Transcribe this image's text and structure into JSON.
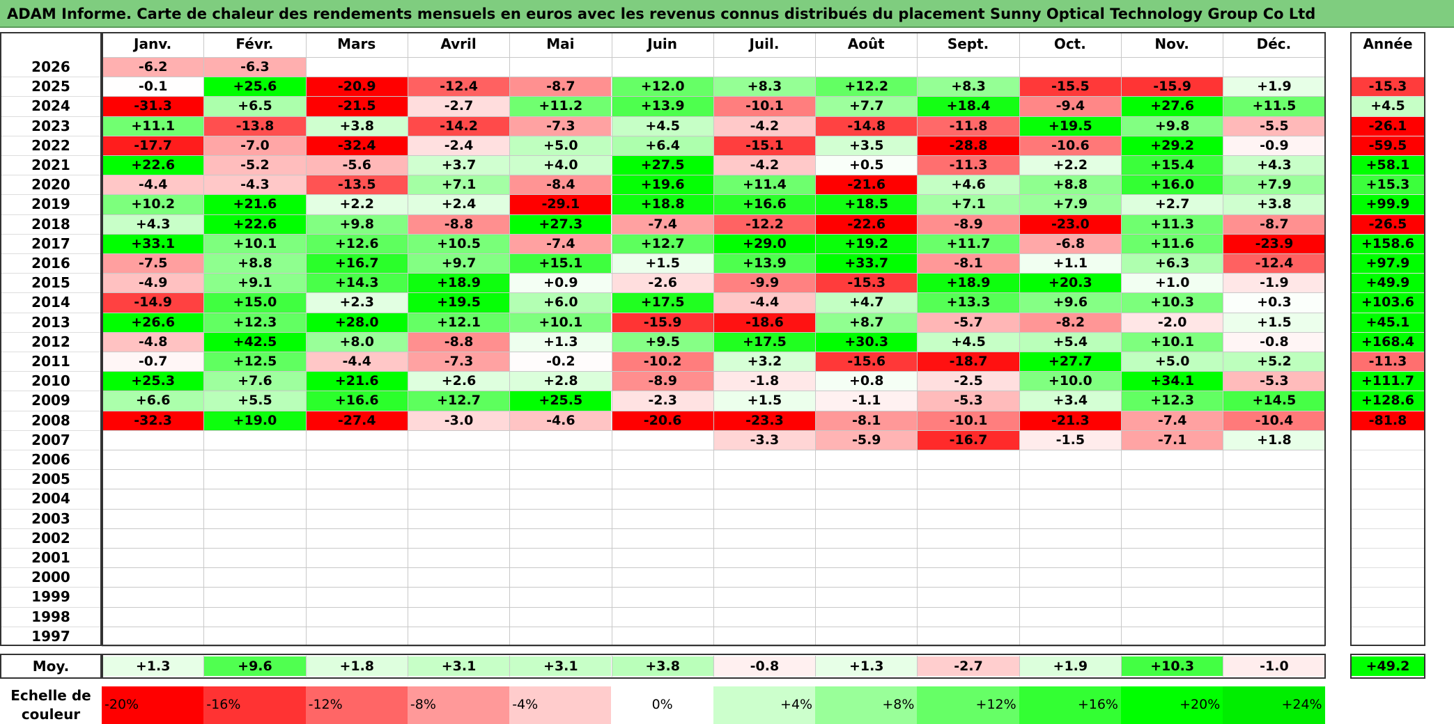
{
  "title": "ADAM Informe. Carte de chaleur des rendements mensuels en euros avec les revenus connus distribués du placement Sunny Optical Technology Group Co Ltd",
  "chart_data": {
    "type": "heatmap",
    "title": "ADAM Informe. Carte de chaleur des rendements mensuels en euros avec les revenus connus distribués du placement Sunny Optical Technology Group Co Ltd",
    "columns": [
      "Janv.",
      "Févr.",
      "Mars",
      "Avril",
      "Mai",
      "Juin",
      "Juil.",
      "Août",
      "Sept.",
      "Oct.",
      "Nov.",
      "Déc."
    ],
    "year_header": "Année",
    "avg_label": "Moy.",
    "rows": [
      {
        "year": "2026",
        "months": [
          -6.2,
          -6.3,
          null,
          null,
          null,
          null,
          null,
          null,
          null,
          null,
          null,
          null
        ],
        "annual": null
      },
      {
        "year": "2025",
        "months": [
          -0.1,
          25.6,
          -20.9,
          -12.4,
          -8.7,
          12.0,
          8.3,
          12.2,
          8.3,
          -15.5,
          -15.9,
          1.9
        ],
        "annual": -15.3
      },
      {
        "year": "2024",
        "months": [
          -31.3,
          6.5,
          -21.5,
          -2.7,
          11.2,
          13.9,
          -10.1,
          7.7,
          18.4,
          -9.4,
          27.6,
          11.5
        ],
        "annual": 4.5
      },
      {
        "year": "2023",
        "months": [
          11.1,
          -13.8,
          3.8,
          -14.2,
          -7.3,
          4.5,
          -4.2,
          -14.8,
          -11.8,
          19.5,
          9.8,
          -5.5
        ],
        "annual": -26.1
      },
      {
        "year": "2022",
        "months": [
          -17.7,
          -7.0,
          -32.4,
          -2.4,
          5.0,
          6.4,
          -15.1,
          3.5,
          -28.8,
          -10.6,
          29.2,
          -0.9
        ],
        "annual": -59.5
      },
      {
        "year": "2021",
        "months": [
          22.6,
          -5.2,
          -5.6,
          3.7,
          4.0,
          27.5,
          -4.2,
          0.5,
          -11.3,
          2.2,
          15.4,
          4.3
        ],
        "annual": 58.1
      },
      {
        "year": "2020",
        "months": [
          -4.4,
          -4.3,
          -13.5,
          7.1,
          -8.4,
          19.6,
          11.4,
          -21.6,
          4.6,
          8.8,
          16.0,
          7.9
        ],
        "annual": 15.3
      },
      {
        "year": "2019",
        "months": [
          10.2,
          21.6,
          2.2,
          2.4,
          -29.1,
          18.8,
          16.6,
          18.5,
          7.1,
          7.9,
          2.7,
          3.8
        ],
        "annual": 99.9
      },
      {
        "year": "2018",
        "months": [
          4.3,
          22.6,
          9.8,
          -8.8,
          27.3,
          -7.4,
          -12.2,
          -22.6,
          -8.9,
          -23.0,
          11.3,
          -8.7
        ],
        "annual": -26.5
      },
      {
        "year": "2017",
        "months": [
          33.1,
          10.1,
          12.6,
          10.5,
          -7.4,
          12.7,
          29.0,
          19.2,
          11.7,
          -6.8,
          11.6,
          -23.9
        ],
        "annual": 158.6
      },
      {
        "year": "2016",
        "months": [
          -7.5,
          8.8,
          16.7,
          9.7,
          15.1,
          1.5,
          13.9,
          33.7,
          -8.1,
          1.1,
          6.3,
          -12.4
        ],
        "annual": 97.9
      },
      {
        "year": "2015",
        "months": [
          -4.9,
          9.1,
          14.3,
          18.9,
          0.9,
          -2.6,
          -9.9,
          -15.3,
          18.9,
          20.3,
          1.0,
          -1.9
        ],
        "annual": 49.9
      },
      {
        "year": "2014",
        "months": [
          -14.9,
          15.0,
          2.3,
          19.5,
          6.0,
          17.5,
          -4.4,
          4.7,
          13.3,
          9.6,
          10.3,
          0.3
        ],
        "annual": 103.6
      },
      {
        "year": "2013",
        "months": [
          26.6,
          12.3,
          28.0,
          12.1,
          10.1,
          -15.9,
          -18.6,
          8.7,
          -5.7,
          -8.2,
          -2.0,
          1.5
        ],
        "annual": 45.1
      },
      {
        "year": "2012",
        "months": [
          -4.8,
          42.5,
          8.0,
          -8.8,
          1.3,
          9.5,
          17.5,
          30.3,
          4.5,
          5.4,
          10.1,
          -0.8
        ],
        "annual": 168.4
      },
      {
        "year": "2011",
        "months": [
          -0.7,
          12.5,
          -4.4,
          -7.3,
          -0.2,
          -10.2,
          3.2,
          -15.6,
          -18.7,
          27.7,
          5.0,
          5.2
        ],
        "annual": -11.3
      },
      {
        "year": "2010",
        "months": [
          25.3,
          7.6,
          21.6,
          2.6,
          2.8,
          -8.9,
          -1.8,
          0.8,
          -2.5,
          10.0,
          34.1,
          -5.3
        ],
        "annual": 111.7
      },
      {
        "year": "2009",
        "months": [
          6.6,
          5.5,
          16.6,
          12.7,
          25.5,
          -2.3,
          1.5,
          -1.1,
          -5.3,
          3.4,
          12.3,
          14.5
        ],
        "annual": 128.6
      },
      {
        "year": "2008",
        "months": [
          -32.3,
          19.0,
          -27.4,
          -3.0,
          -4.6,
          -20.6,
          -23.3,
          -8.1,
          -10.1,
          -21.3,
          -7.4,
          -10.4
        ],
        "annual": -81.8
      },
      {
        "year": "2007",
        "months": [
          null,
          null,
          null,
          null,
          null,
          null,
          -3.3,
          -5.9,
          -16.7,
          -1.5,
          -7.1,
          1.8
        ],
        "annual": null
      },
      {
        "year": "2006",
        "months": [
          null,
          null,
          null,
          null,
          null,
          null,
          null,
          null,
          null,
          null,
          null,
          null
        ],
        "annual": null
      },
      {
        "year": "2005",
        "months": [
          null,
          null,
          null,
          null,
          null,
          null,
          null,
          null,
          null,
          null,
          null,
          null
        ],
        "annual": null
      },
      {
        "year": "2004",
        "months": [
          null,
          null,
          null,
          null,
          null,
          null,
          null,
          null,
          null,
          null,
          null,
          null
        ],
        "annual": null
      },
      {
        "year": "2003",
        "months": [
          null,
          null,
          null,
          null,
          null,
          null,
          null,
          null,
          null,
          null,
          null,
          null
        ],
        "annual": null
      },
      {
        "year": "2002",
        "months": [
          null,
          null,
          null,
          null,
          null,
          null,
          null,
          null,
          null,
          null,
          null,
          null
        ],
        "annual": null
      },
      {
        "year": "2001",
        "months": [
          null,
          null,
          null,
          null,
          null,
          null,
          null,
          null,
          null,
          null,
          null,
          null
        ],
        "annual": null
      },
      {
        "year": "2000",
        "months": [
          null,
          null,
          null,
          null,
          null,
          null,
          null,
          null,
          null,
          null,
          null,
          null
        ],
        "annual": null
      },
      {
        "year": "1999",
        "months": [
          null,
          null,
          null,
          null,
          null,
          null,
          null,
          null,
          null,
          null,
          null,
          null
        ],
        "annual": null
      },
      {
        "year": "1998",
        "months": [
          null,
          null,
          null,
          null,
          null,
          null,
          null,
          null,
          null,
          null,
          null,
          null
        ],
        "annual": null
      },
      {
        "year": "1997",
        "months": [
          null,
          null,
          null,
          null,
          null,
          null,
          null,
          null,
          null,
          null,
          null,
          null
        ],
        "annual": null
      }
    ],
    "averages": [
      1.3,
      9.6,
      1.8,
      3.1,
      3.1,
      3.8,
      -0.8,
      1.3,
      -2.7,
      1.9,
      10.3,
      -1.0
    ],
    "average_annual": 49.2,
    "color_scale": {
      "label": "Echelle de couleur",
      "stops": [
        {
          "label": "-20%",
          "value": -20,
          "color": "#ff0000"
        },
        {
          "label": "-16%",
          "value": -16,
          "color": "#ff3333"
        },
        {
          "label": "-12%",
          "value": -12,
          "color": "#ff6666"
        },
        {
          "label": "-8%",
          "value": -8,
          "color": "#ff9999"
        },
        {
          "label": "-4%",
          "value": -4,
          "color": "#ffcccc"
        },
        {
          "label": "0%",
          "value": 0,
          "color": "#ffffff"
        },
        {
          "label": "+4%",
          "value": 4,
          "color": "#ccffcc"
        },
        {
          "label": "+8%",
          "value": 8,
          "color": "#99ff99"
        },
        {
          "label": "+12%",
          "value": 12,
          "color": "#66ff66"
        },
        {
          "label": "+16%",
          "value": 16,
          "color": "#33ff33"
        },
        {
          "label": "+20%",
          "value": 20,
          "color": "#00ff00"
        },
        {
          "label": "+24%",
          "value": 24,
          "color": "#00ee00"
        }
      ]
    }
  }
}
